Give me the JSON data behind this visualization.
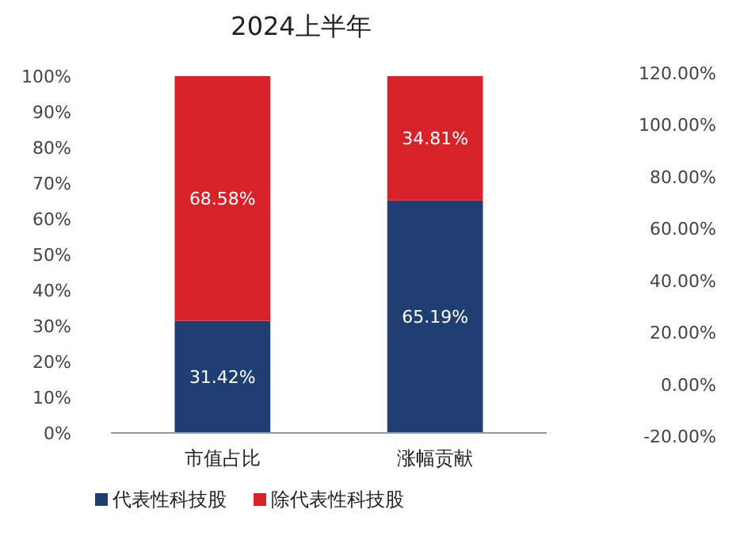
{
  "chart_data": {
    "type": "bar",
    "title": "2024上半年",
    "stacked": true,
    "categories": [
      "市值占比",
      "涨幅贡献"
    ],
    "series": [
      {
        "name": "代表性科技股",
        "color": "#1f3f73",
        "values": [
          31.42,
          65.19
        ],
        "value_labels": [
          "31.42%",
          "65.19%"
        ]
      },
      {
        "name": "除代表性科技股",
        "color": "#d7222a",
        "values": [
          68.58,
          34.81
        ],
        "value_labels": [
          "68.58%",
          "34.81%"
        ]
      }
    ],
    "ylim": [
      0,
      100
    ],
    "yticks": [
      {
        "value": 0,
        "label": "0%"
      },
      {
        "value": 10,
        "label": "10%"
      },
      {
        "value": 20,
        "label": "20%"
      },
      {
        "value": 30,
        "label": "30%"
      },
      {
        "value": 40,
        "label": "40%"
      },
      {
        "value": 50,
        "label": "50%"
      },
      {
        "value": 60,
        "label": "60%"
      },
      {
        "value": 70,
        "label": "70%"
      },
      {
        "value": 80,
        "label": "80%"
      },
      {
        "value": 90,
        "label": "90%"
      },
      {
        "value": 100,
        "label": "100%"
      }
    ],
    "y2lim": [
      -20,
      120
    ],
    "y2ticks": [
      {
        "value": -20,
        "label": "-20.00%"
      },
      {
        "value": 0,
        "label": "0.00%"
      },
      {
        "value": 20,
        "label": "20.00%"
      },
      {
        "value": 40,
        "label": "40.00%"
      },
      {
        "value": 60,
        "label": "60.00%"
      },
      {
        "value": 80,
        "label": "80.00%"
      },
      {
        "value": 100,
        "label": "100.00%"
      },
      {
        "value": 120,
        "label": "120.00%"
      }
    ],
    "legend": "bottom"
  }
}
